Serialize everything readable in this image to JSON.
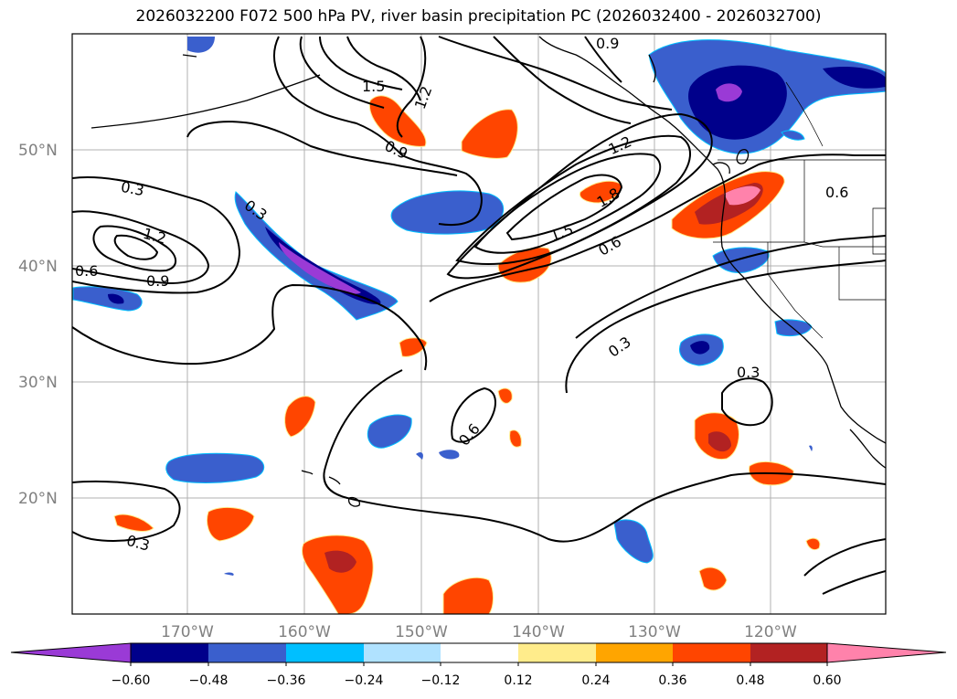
{
  "title": "2026032200 F072 500 hPa PV, river basin precipitation PC (2026032400 - 2026032700)",
  "map": {
    "lat_labels": [
      "50°N",
      "40°N",
      "30°N",
      "20°N"
    ],
    "lon_labels": [
      "170°W",
      "160°W",
      "150°W",
      "140°W",
      "130°W",
      "120°W"
    ],
    "contour_labels": [
      "0.9",
      "1.5",
      "1.2",
      "0.9",
      "1.2",
      "1.8",
      "1.5",
      "0.6",
      "0.3",
      "0.3",
      "1.2",
      "0.6",
      "0.9",
      "0.3",
      "0.6",
      "0.3",
      "0.3",
      "0.6"
    ]
  },
  "colorbar": {
    "ticks": [
      "−0.60",
      "−0.48",
      "−0.36",
      "−0.24",
      "−0.12",
      "0.12",
      "0.24",
      "0.36",
      "0.48",
      "0.60"
    ],
    "colors": [
      "#9a3ad6",
      "#00008b",
      "#3a5fcd",
      "#00bfff",
      "#b0e2ff",
      "#ffffff",
      "#ffec8b",
      "#ffa500",
      "#ff4500",
      "#b22222",
      "#ff82ab",
      "#ff82ab"
    ]
  }
}
